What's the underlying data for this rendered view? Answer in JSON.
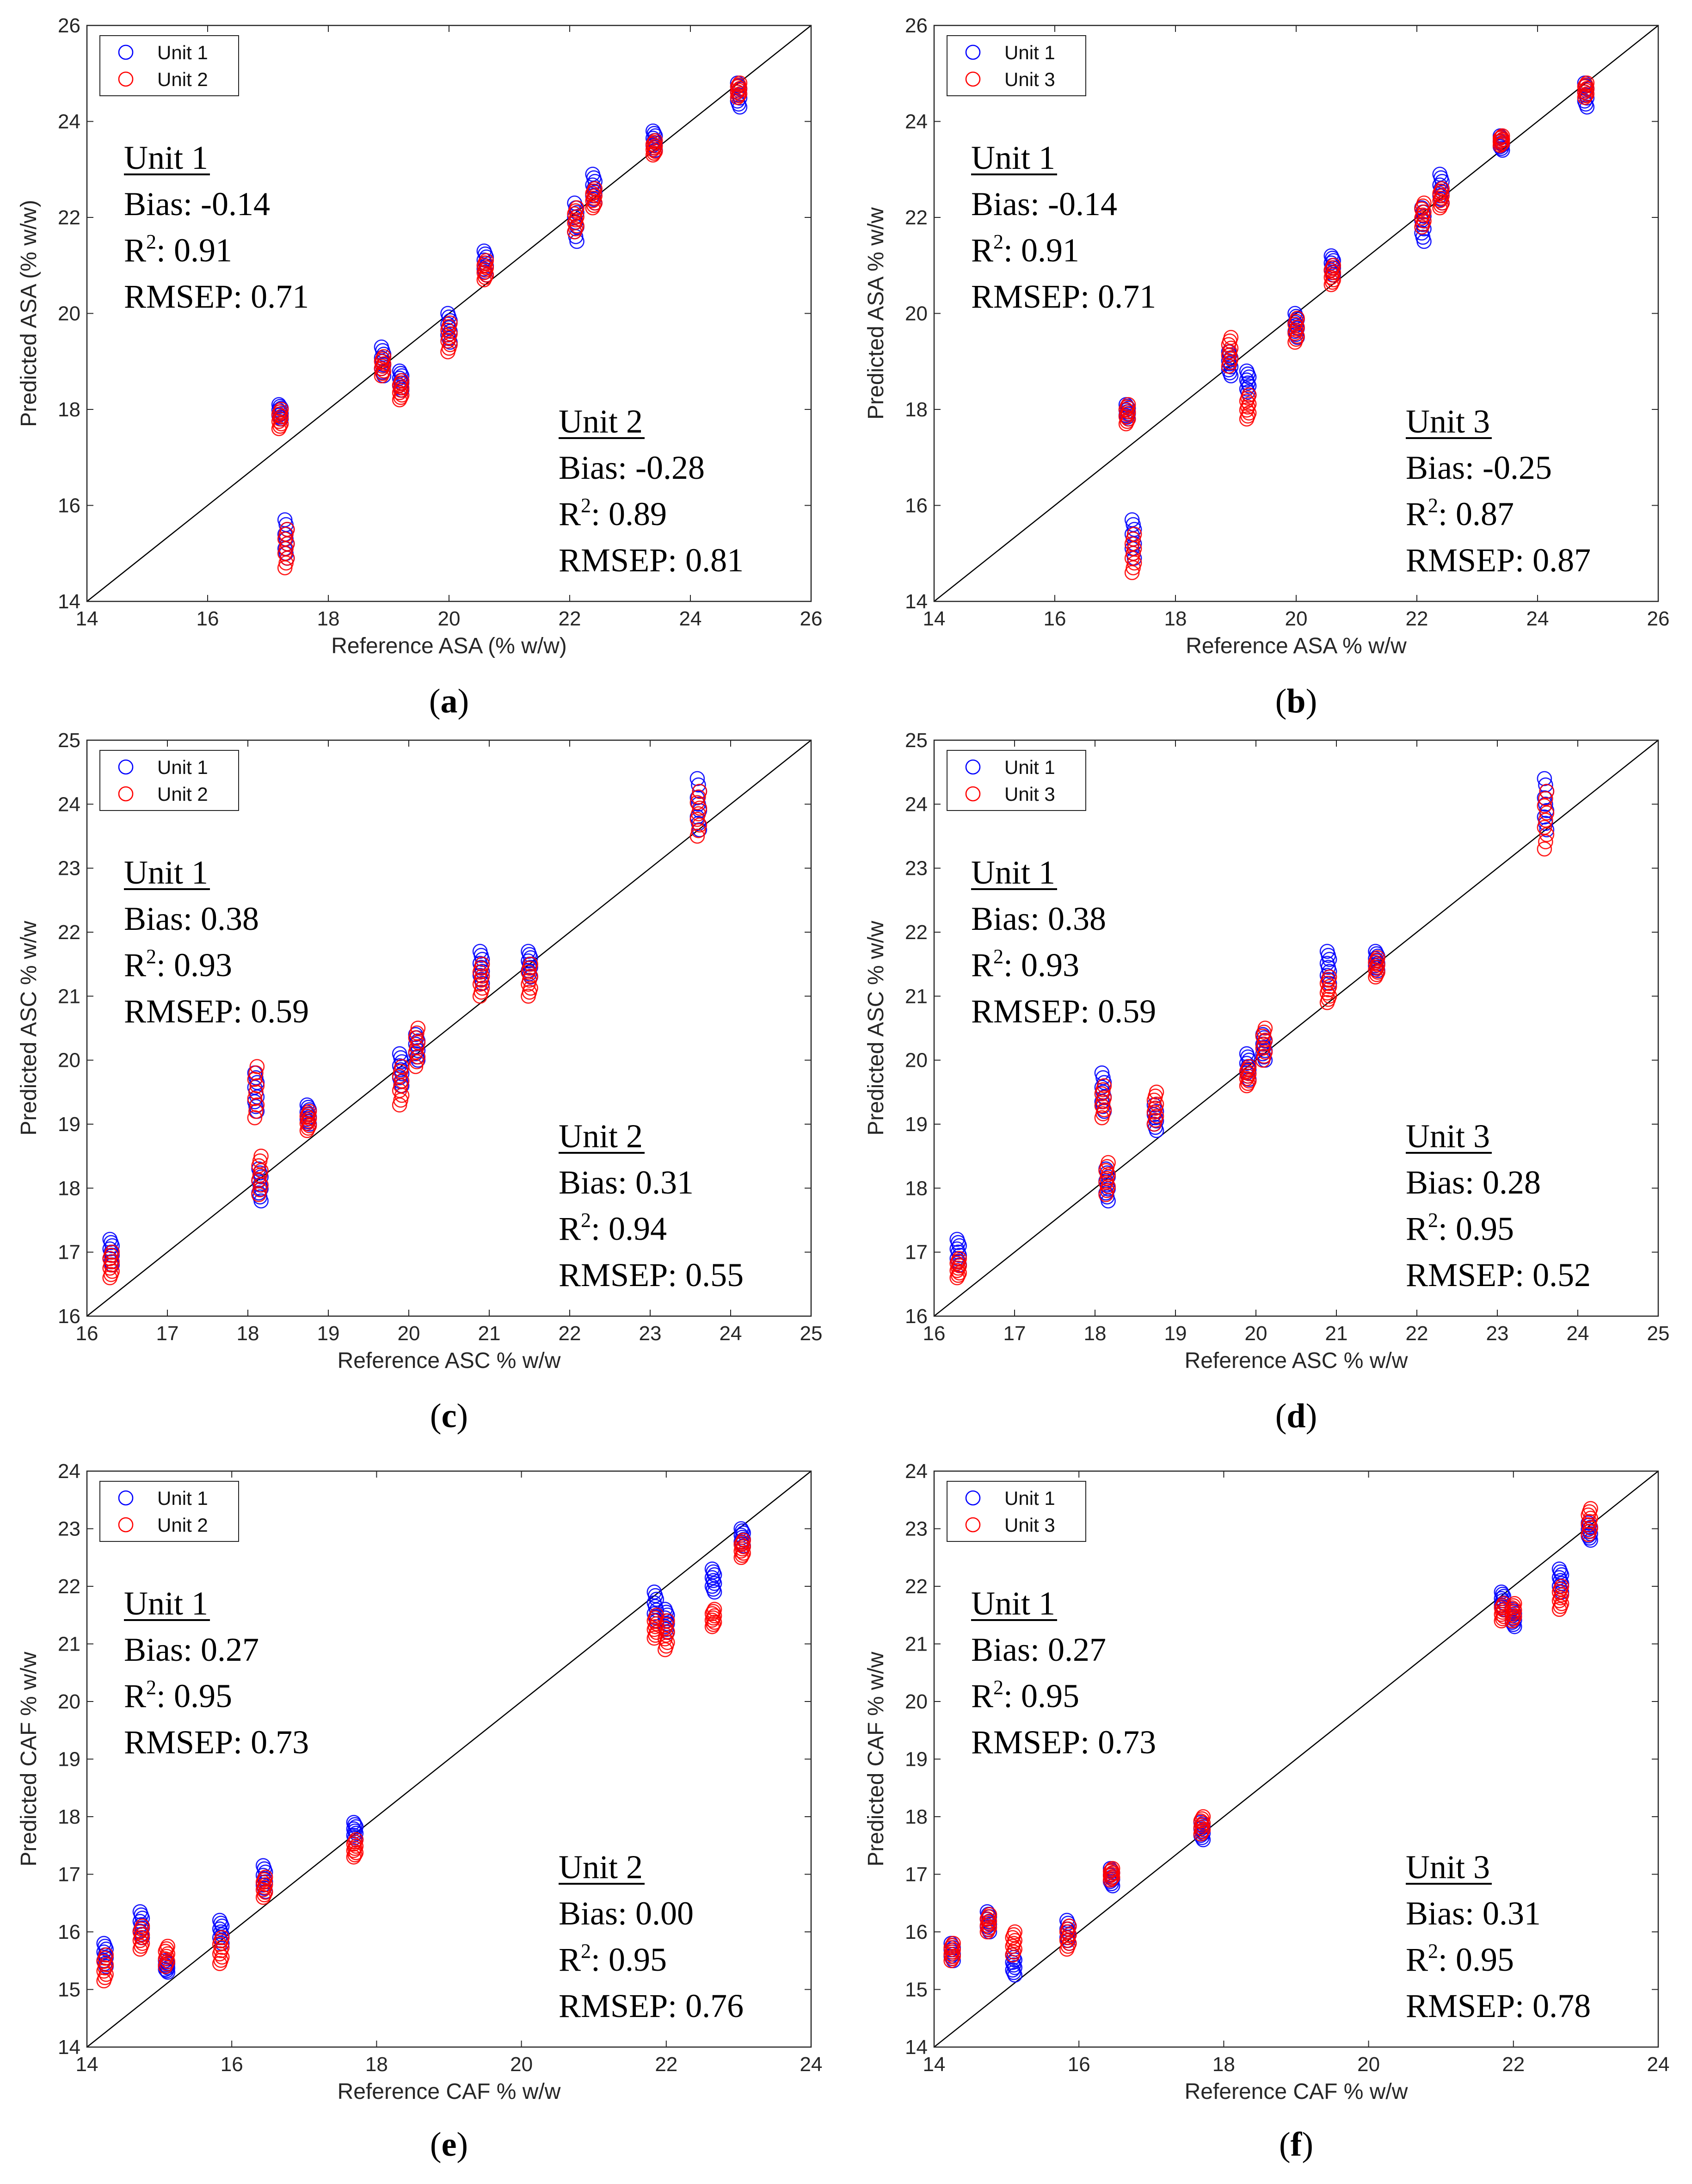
{
  "colors": {
    "unit1": "#0000ff",
    "unit2": "#ff0000",
    "unit3": "#ff0000",
    "identity": "#000000"
  },
  "chart_data": [
    {
      "panel": "(a)",
      "caption_letter": "a",
      "type": "scatter",
      "xlabel": "Reference ASA (% w/w)",
      "ylabel": "Predicted ASA (% w/w)",
      "xlim": [
        14,
        26
      ],
      "ylim": [
        14,
        26
      ],
      "xticks": [
        14,
        16,
        18,
        20,
        22,
        24,
        26
      ],
      "yticks": [
        14,
        16,
        18,
        20,
        22,
        24,
        26
      ],
      "legend": [
        "Unit 1",
        "Unit 2"
      ],
      "legend_position": "top-left",
      "stats": [
        {
          "unit": "Unit 1",
          "bias_label": "Bias: -0.14",
          "r2_label": "R",
          "r2_value": ": 0.91",
          "rmsep_label": "RMSEP: 0.71",
          "placement": "upper-left"
        },
        {
          "unit": "Unit 2",
          "bias_label": "Bias: -0.28",
          "r2_label": "R",
          "r2_value": ": 0.89",
          "rmsep_label": "RMSEP: 0.81",
          "placement": "lower-right"
        }
      ],
      "series": [
        {
          "name": "Unit 1",
          "color": "#0000ff",
          "groups": [
            [
              17.2,
              17.8,
              18.1
            ],
            [
              17.3,
              14.9,
              15.7
            ],
            [
              18.9,
              18.7,
              19.3
            ],
            [
              19.2,
              18.4,
              18.8
            ],
            [
              20.0,
              19.4,
              20.0
            ],
            [
              20.6,
              20.8,
              21.3
            ],
            [
              22.1,
              21.5,
              22.3
            ],
            [
              22.4,
              22.3,
              22.9
            ],
            [
              23.4,
              23.4,
              23.8
            ],
            [
              24.8,
              24.3,
              24.8
            ]
          ]
        },
        {
          "name": "Unit 2",
          "color": "#ff0000",
          "groups": [
            [
              17.2,
              17.6,
              18.0
            ],
            [
              17.3,
              14.7,
              15.5
            ],
            [
              18.9,
              18.7,
              19.1
            ],
            [
              19.2,
              18.2,
              18.6
            ],
            [
              20.0,
              19.2,
              19.8
            ],
            [
              20.6,
              20.7,
              21.1
            ],
            [
              22.1,
              21.7,
              22.2
            ],
            [
              22.4,
              22.2,
              22.6
            ],
            [
              23.4,
              23.3,
              23.6
            ],
            [
              24.8,
              24.5,
              24.8
            ]
          ]
        }
      ]
    },
    {
      "panel": "(b)",
      "caption_letter": "b",
      "type": "scatter",
      "xlabel": "Reference ASA % w/w",
      "ylabel": "Predicted ASA % w/w",
      "xlim": [
        14,
        26
      ],
      "ylim": [
        14,
        26
      ],
      "xticks": [
        14,
        16,
        18,
        20,
        22,
        24,
        26
      ],
      "yticks": [
        14,
        16,
        18,
        20,
        22,
        24,
        26
      ],
      "legend": [
        "Unit 1",
        "Unit 3"
      ],
      "legend_position": "top-left",
      "stats": [
        {
          "unit": "Unit 1",
          "bias_label": "Bias: -0.14",
          "r2_label": "R",
          "r2_value": ": 0.91",
          "rmsep_label": "RMSEP: 0.71",
          "placement": "upper-left"
        },
        {
          "unit": "Unit 3",
          "bias_label": "Bias: -0.25",
          "r2_label": "R",
          "r2_value": ": 0.87",
          "rmsep_label": "RMSEP: 0.87",
          "placement": "lower-right"
        }
      ],
      "series": [
        {
          "name": "Unit 1",
          "color": "#0000ff",
          "groups": [
            [
              17.2,
              17.8,
              18.1
            ],
            [
              17.3,
              14.9,
              15.7
            ],
            [
              18.9,
              18.7,
              19.2
            ],
            [
              19.2,
              18.3,
              18.8
            ],
            [
              20.0,
              19.5,
              20.0
            ],
            [
              20.6,
              20.8,
              21.2
            ],
            [
              22.1,
              21.5,
              22.2
            ],
            [
              22.4,
              22.3,
              22.9
            ],
            [
              23.4,
              23.4,
              23.7
            ],
            [
              24.8,
              24.3,
              24.8
            ]
          ]
        },
        {
          "name": "Unit 3",
          "color": "#ff0000",
          "groups": [
            [
              17.2,
              17.7,
              18.1
            ],
            [
              17.3,
              14.6,
              15.4
            ],
            [
              18.9,
              18.9,
              19.5
            ],
            [
              19.2,
              17.8,
              18.3
            ],
            [
              20.0,
              19.4,
              19.9
            ],
            [
              20.6,
              20.6,
              21.0
            ],
            [
              22.1,
              21.8,
              22.3
            ],
            [
              22.4,
              22.2,
              22.6
            ],
            [
              23.4,
              23.5,
              23.7
            ],
            [
              24.8,
              24.5,
              24.8
            ]
          ]
        }
      ]
    },
    {
      "panel": "(c)",
      "caption_letter": "c",
      "type": "scatter",
      "xlabel": "Reference ASC % w/w",
      "ylabel": "Predicted ASC % w/w",
      "xlim": [
        16,
        25
      ],
      "ylim": [
        16,
        25
      ],
      "xticks": [
        16,
        17,
        18,
        19,
        20,
        21,
        22,
        23,
        24,
        25
      ],
      "yticks": [
        16,
        17,
        18,
        19,
        20,
        21,
        22,
        23,
        24,
        25
      ],
      "legend": [
        "Unit 1",
        "Unit 2"
      ],
      "legend_position": "top-left",
      "stats": [
        {
          "unit": "Unit 1",
          "bias_label": "Bias: 0.38",
          "r2_label": "R",
          "r2_value": ": 0.93",
          "rmsep_label": "RMSEP: 0.59",
          "placement": "upper-left"
        },
        {
          "unit": "Unit 2",
          "bias_label": "Bias: 0.31",
          "r2_label": "R",
          "r2_value": ": 0.94",
          "rmsep_label": "RMSEP: 0.55",
          "placement": "lower-right"
        }
      ],
      "series": [
        {
          "name": "Unit 1",
          "color": "#0000ff",
          "groups": [
            [
              16.3,
              16.8,
              17.2
            ],
            [
              18.1,
              19.2,
              19.8
            ],
            [
              18.15,
              17.8,
              18.3
            ],
            [
              18.75,
              19.0,
              19.3
            ],
            [
              19.9,
              19.6,
              20.1
            ],
            [
              20.1,
              20.0,
              20.4
            ],
            [
              20.9,
              21.2,
              21.7
            ],
            [
              21.5,
              21.3,
              21.7
            ],
            [
              23.6,
              23.6,
              24.4
            ]
          ]
        },
        {
          "name": "Unit 2",
          "color": "#ff0000",
          "groups": [
            [
              16.3,
              16.6,
              17.0
            ],
            [
              18.1,
              19.1,
              19.9
            ],
            [
              18.15,
              17.9,
              18.5
            ],
            [
              18.75,
              18.9,
              19.2
            ],
            [
              19.9,
              19.3,
              19.9
            ],
            [
              20.1,
              19.9,
              20.5
            ],
            [
              20.9,
              21.0,
              21.5
            ],
            [
              21.5,
              21.0,
              21.5
            ],
            [
              23.6,
              23.5,
              24.2
            ]
          ]
        }
      ]
    },
    {
      "panel": "(d)",
      "caption_letter": "d",
      "type": "scatter",
      "xlabel": "Reference ASC % w/w",
      "ylabel": "Predicted ASC % w/w",
      "xlim": [
        16,
        25
      ],
      "ylim": [
        16,
        25
      ],
      "xticks": [
        16,
        17,
        18,
        19,
        20,
        21,
        22,
        23,
        24,
        25
      ],
      "yticks": [
        16,
        17,
        18,
        19,
        20,
        21,
        22,
        23,
        24,
        25
      ],
      "legend": [
        "Unit 1",
        "Unit 3"
      ],
      "legend_position": "top-left",
      "stats": [
        {
          "unit": "Unit 1",
          "bias_label": "Bias: 0.38",
          "r2_label": "R",
          "r2_value": ": 0.93",
          "rmsep_label": "RMSEP: 0.59",
          "placement": "upper-left"
        },
        {
          "unit": "Unit 3",
          "bias_label": "Bias: 0.28",
          "r2_label": "R",
          "r2_value": ": 0.95",
          "rmsep_label": "RMSEP: 0.52",
          "placement": "lower-right"
        }
      ],
      "series": [
        {
          "name": "Unit 1",
          "color": "#0000ff",
          "groups": [
            [
              16.3,
              16.8,
              17.2
            ],
            [
              18.1,
              19.2,
              19.8
            ],
            [
              18.15,
              17.8,
              18.3
            ],
            [
              18.75,
              18.9,
              19.3
            ],
            [
              19.9,
              19.7,
              20.1
            ],
            [
              20.1,
              20.0,
              20.4
            ],
            [
              20.9,
              21.2,
              21.7
            ],
            [
              21.5,
              21.4,
              21.7
            ],
            [
              23.6,
              23.6,
              24.4
            ]
          ]
        },
        {
          "name": "Unit 3",
          "color": "#ff0000",
          "groups": [
            [
              16.3,
              16.6,
              16.9
            ],
            [
              18.1,
              19.1,
              19.6
            ],
            [
              18.15,
              17.9,
              18.4
            ],
            [
              18.75,
              19.0,
              19.5
            ],
            [
              19.9,
              19.6,
              19.9
            ],
            [
              20.1,
              20.0,
              20.5
            ],
            [
              20.9,
              20.9,
              21.3
            ],
            [
              21.5,
              21.3,
              21.6
            ],
            [
              23.6,
              23.3,
              24.2
            ]
          ]
        }
      ]
    },
    {
      "panel": "(e)",
      "caption_letter": "e",
      "type": "scatter",
      "xlabel": "Reference CAF % w/w",
      "ylabel": "Predicted CAF % w/w",
      "xlim": [
        14,
        24
      ],
      "ylim": [
        14,
        24
      ],
      "xticks": [
        14,
        16,
        18,
        20,
        22,
        24
      ],
      "yticks": [
        14,
        15,
        16,
        17,
        18,
        19,
        20,
        21,
        22,
        23,
        24
      ],
      "legend": [
        "Unit 1",
        "Unit 2"
      ],
      "legend_position": "top-left",
      "stats": [
        {
          "unit": "Unit 1",
          "bias_label": "Bias: 0.27",
          "r2_label": "R",
          "r2_value": ": 0.95",
          "rmsep_label": "RMSEP: 0.73",
          "placement": "upper-left"
        },
        {
          "unit": "Unit 2",
          "bias_label": "Bias: 0.00",
          "r2_label": "R",
          "r2_value": ": 0.95",
          "rmsep_label": "RMSEP: 0.76",
          "placement": "lower-right"
        }
      ],
      "series": [
        {
          "name": "Unit 1",
          "color": "#0000ff",
          "groups": [
            [
              14.25,
              15.4,
              15.8
            ],
            [
              14.75,
              15.9,
              16.35
            ],
            [
              15.1,
              15.3,
              15.5
            ],
            [
              15.85,
              15.8,
              16.2
            ],
            [
              16.45,
              16.7,
              17.15
            ],
            [
              17.7,
              17.6,
              17.9
            ],
            [
              21.85,
              21.4,
              21.9
            ],
            [
              22.0,
              21.2,
              21.6
            ],
            [
              22.65,
              21.9,
              22.3
            ],
            [
              23.05,
              22.7,
              23.0
            ]
          ]
        },
        {
          "name": "Unit 2",
          "color": "#ff0000",
          "groups": [
            [
              14.25,
              15.15,
              15.6
            ],
            [
              14.75,
              15.7,
              16.1
            ],
            [
              15.1,
              15.4,
              15.75
            ],
            [
              15.85,
              15.45,
              15.9
            ],
            [
              16.45,
              16.6,
              16.95
            ],
            [
              17.7,
              17.3,
              17.6
            ],
            [
              21.85,
              21.1,
              21.5
            ],
            [
              22.0,
              20.9,
              21.4
            ],
            [
              22.65,
              21.3,
              21.6
            ],
            [
              23.05,
              22.5,
              22.8
            ]
          ]
        }
      ]
    },
    {
      "panel": "(f)",
      "caption_letter": "f",
      "type": "scatter",
      "xlabel": "Reference CAF % w/w",
      "ylabel": "Predicted CAF % w/w",
      "xlim": [
        14,
        24
      ],
      "ylim": [
        14,
        24
      ],
      "xticks": [
        14,
        16,
        18,
        20,
        22,
        24
      ],
      "yticks": [
        14,
        15,
        16,
        17,
        18,
        19,
        20,
        21,
        22,
        23,
        24
      ],
      "legend": [
        "Unit 1",
        "Unit 3"
      ],
      "legend_position": "top-left",
      "stats": [
        {
          "unit": "Unit 1",
          "bias_label": "Bias: 0.27",
          "r2_label": "R",
          "r2_value": ": 0.95",
          "rmsep_label": "RMSEP: 0.73",
          "placement": "upper-left"
        },
        {
          "unit": "Unit 3",
          "bias_label": "Bias: 0.31",
          "r2_label": "R",
          "r2_value": ": 0.95",
          "rmsep_label": "RMSEP: 0.78",
          "placement": "lower-right"
        }
      ],
      "series": [
        {
          "name": "Unit 1",
          "color": "#0000ff",
          "groups": [
            [
              14.25,
              15.5,
              15.8
            ],
            [
              14.75,
              16.0,
              16.35
            ],
            [
              15.1,
              15.25,
              15.6
            ],
            [
              15.85,
              15.8,
              16.2
            ],
            [
              16.45,
              16.8,
              17.1
            ],
            [
              17.7,
              17.6,
              17.9
            ],
            [
              21.85,
              21.6,
              21.9
            ],
            [
              22.0,
              21.3,
              21.6
            ],
            [
              22.65,
              21.9,
              22.3
            ],
            [
              23.05,
              22.8,
              23.1
            ]
          ]
        },
        {
          "name": "Unit 3",
          "color": "#ff0000",
          "groups": [
            [
              14.25,
              15.5,
              15.8
            ],
            [
              14.75,
              16.0,
              16.3
            ],
            [
              15.1,
              15.6,
              16.0
            ],
            [
              15.85,
              15.7,
              16.1
            ],
            [
              16.45,
              16.9,
              17.1
            ],
            [
              17.7,
              17.7,
              18.0
            ],
            [
              21.85,
              21.4,
              21.7
            ],
            [
              22.0,
              21.4,
              21.7
            ],
            [
              22.65,
              21.6,
              22.0
            ],
            [
              23.05,
              22.9,
              23.35
            ]
          ]
        }
      ]
    }
  ]
}
